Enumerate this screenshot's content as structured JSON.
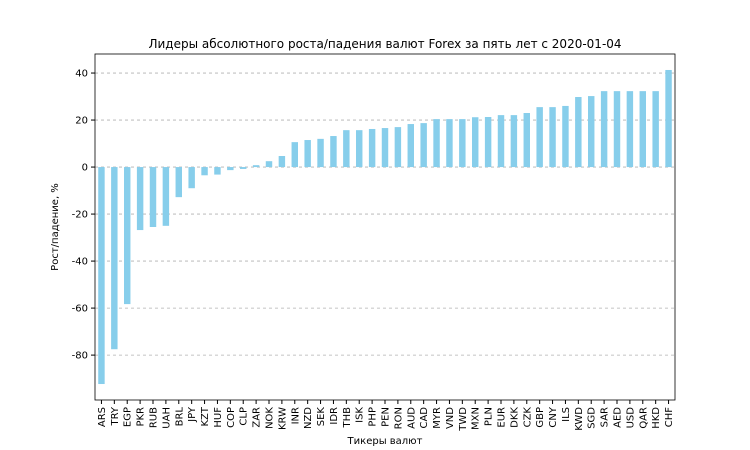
{
  "chart_data": {
    "type": "bar",
    "title": "Лидеры абсолютного роста/падения валют Forex за пять лет с 2020-01-04",
    "xlabel": "Тикеры валют",
    "ylabel": "Рост/падение, %",
    "categories": [
      "ARS",
      "TRY",
      "EGP",
      "PKR",
      "RUB",
      "UAH",
      "BRL",
      "JPY",
      "KZT",
      "HUF",
      "COP",
      "CLP",
      "ZAR",
      "NOK",
      "KRW",
      "INR",
      "NZD",
      "SEK",
      "IDR",
      "THB",
      "ISK",
      "PHP",
      "PEN",
      "RON",
      "AUD",
      "CAD",
      "MYR",
      "VND",
      "TWD",
      "MXN",
      "PLN",
      "EUR",
      "DKK",
      "CZK",
      "GBP",
      "CNY",
      "ILS",
      "KWD",
      "SGD",
      "SAR",
      "AED",
      "USD",
      "QAR",
      "HKD",
      "CHF"
    ],
    "values": [
      -92.3,
      -77.5,
      -58.3,
      -26.8,
      -25.5,
      -25,
      -12.8,
      -9,
      -3.5,
      -3.2,
      -1.3,
      -0.8,
      0.8,
      2.5,
      4.7,
      10.6,
      11.5,
      12,
      13.2,
      15.7,
      15.7,
      16.2,
      16.6,
      17,
      18.3,
      18.7,
      20.4,
      20.4,
      20.4,
      21.2,
      21.3,
      22.1,
      22.1,
      23,
      25.5,
      25.5,
      26,
      29.8,
      30.2,
      32.3,
      32.3,
      32.3,
      32.3,
      32.3,
      41.3
    ],
    "color": "#87ceeb",
    "ylim": [
      -99.1,
      48.1
    ],
    "yticks": [
      -80,
      -60,
      -40,
      -20,
      0,
      20,
      40
    ],
    "grid": true
  }
}
